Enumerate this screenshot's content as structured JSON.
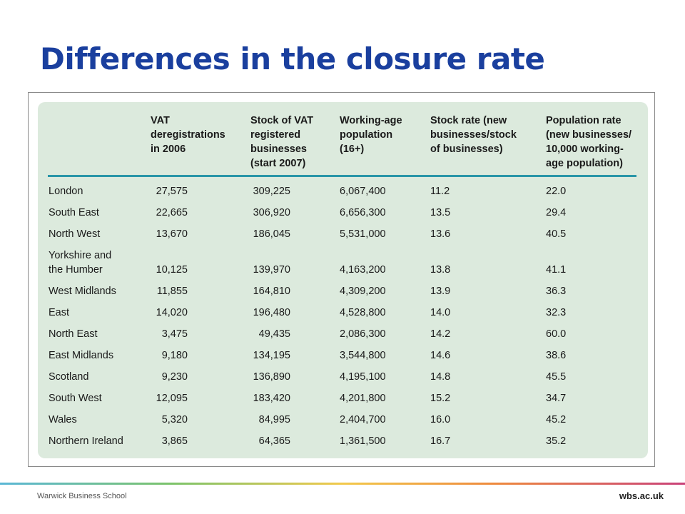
{
  "slide": {
    "title": "Differences in the closure rate"
  },
  "table": {
    "headers": [
      "VAT\nderegistrations\nin 2006",
      "Stock of VAT\nregistered\nbusinesses\n(start 2007)",
      "Working-age\npopulation\n(16+)",
      "Stock rate (new\nbusinesses/stock\nof businesses)",
      "Population rate\n(new businesses/\n10,000 working-\nage population)"
    ],
    "rows": [
      [
        "London",
        "27,575",
        "309,225",
        "6,067,400",
        "11.2",
        "22.0"
      ],
      [
        "South East",
        "22,665",
        "306,920",
        "6,656,300",
        "13.5",
        "29.4"
      ],
      [
        "North West",
        "13,670",
        "186,045",
        "5,531,000",
        "13.6",
        "40.5"
      ],
      [
        "Yorkshire and\nthe Humber",
        "10,125",
        "139,970",
        "4,163,200",
        "13.8",
        "41.1"
      ],
      [
        "West Midlands",
        "11,855",
        "164,810",
        "4,309,200",
        "13.9",
        "36.3"
      ],
      [
        "East",
        "14,020",
        "196,480",
        "4,528,800",
        "14.0",
        "32.3"
      ],
      [
        "North East",
        "3,475",
        "49,435",
        "2,086,300",
        "14.2",
        "60.0"
      ],
      [
        "East Midlands",
        "9,180",
        "134,195",
        "3,544,800",
        "14.6",
        "38.6"
      ],
      [
        "Scotland",
        "9,230",
        "136,890",
        "4,195,100",
        "14.8",
        "45.5"
      ],
      [
        "South West",
        "12,095",
        "183,420",
        "4,201,800",
        "15.2",
        "34.7"
      ],
      [
        "Wales",
        "5,320",
        "84,995",
        "2,404,700",
        "16.0",
        "45.2"
      ],
      [
        "Northern Ireland",
        "3,865",
        "64,365",
        "1,361,500",
        "16.7",
        "35.2"
      ]
    ]
  },
  "footer": {
    "left": "Warwick Business School",
    "right": "wbs.ac.uk"
  },
  "colors": {
    "title": "#1a3f9e",
    "panel": "#dceadd",
    "rule": "#2a96a8"
  }
}
